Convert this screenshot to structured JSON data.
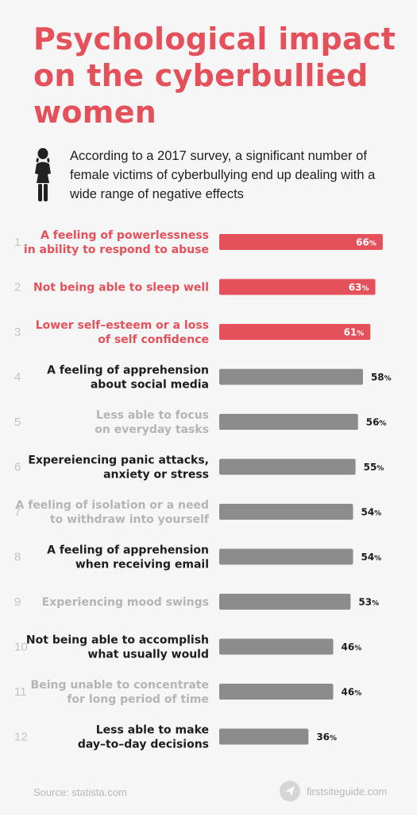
{
  "title": "Psychological impact on the cyberbullied women",
  "intro": "According to a 2017 survey, a significant number of female victims of cyberbullying end up dealing with a wide range of negative effects",
  "icons": {
    "intro": "woman-icon",
    "footer": "paper-plane-icon"
  },
  "colors": {
    "highlight": "#e5515a",
    "bar_gray": "#8c8c8c",
    "text_dark": "#1d1d1d",
    "text_light": "#b5b5b5",
    "rank": "#c4c4c4"
  },
  "footer": {
    "source": "Source: statista.com",
    "brand": "firstsiteguide.com"
  },
  "chart_data": {
    "type": "bar",
    "orientation": "horizontal",
    "value_suffix": "%",
    "items": [
      {
        "rank": "1",
        "label": [
          "A feeling of powerlessness",
          "in ability to respond to abuse"
        ],
        "value": 66,
        "style": "highlight"
      },
      {
        "rank": "2",
        "label": [
          "Not being able to sleep well"
        ],
        "value": 63,
        "style": "highlight"
      },
      {
        "rank": "3",
        "label": [
          "Lower self–esteem or a loss",
          "of self confidence"
        ],
        "value": 61,
        "style": "highlight"
      },
      {
        "rank": "4",
        "label": [
          "A feeling of apprehension",
          "about social media"
        ],
        "value": 58,
        "style": "dark"
      },
      {
        "rank": "5",
        "label": [
          "Less able to focus",
          "on everyday tasks"
        ],
        "value": 56,
        "style": "light"
      },
      {
        "rank": "6",
        "label": [
          "Expereiencing panic attacks,",
          "anxiety or stress"
        ],
        "value": 55,
        "style": "dark"
      },
      {
        "rank": "7",
        "label": [
          "A feeling of isolation or a need",
          "to withdraw into yourself"
        ],
        "value": 54,
        "style": "light"
      },
      {
        "rank": "8",
        "label": [
          "A feeling of apprehension",
          "when receiving email"
        ],
        "value": 54,
        "style": "dark"
      },
      {
        "rank": "9",
        "label": [
          "Experiencing mood swings"
        ],
        "value": 53,
        "style": "light"
      },
      {
        "rank": "10",
        "label": [
          "Not being able to accomplish",
          "what usually would"
        ],
        "value": 46,
        "style": "dark"
      },
      {
        "rank": "11",
        "label": [
          "Being unable to concentrate",
          "for long period of time"
        ],
        "value": 46,
        "style": "light"
      },
      {
        "rank": "12",
        "label": [
          "Less able to make",
          "day–to–day decisions"
        ],
        "value": 36,
        "style": "dark"
      }
    ]
  }
}
